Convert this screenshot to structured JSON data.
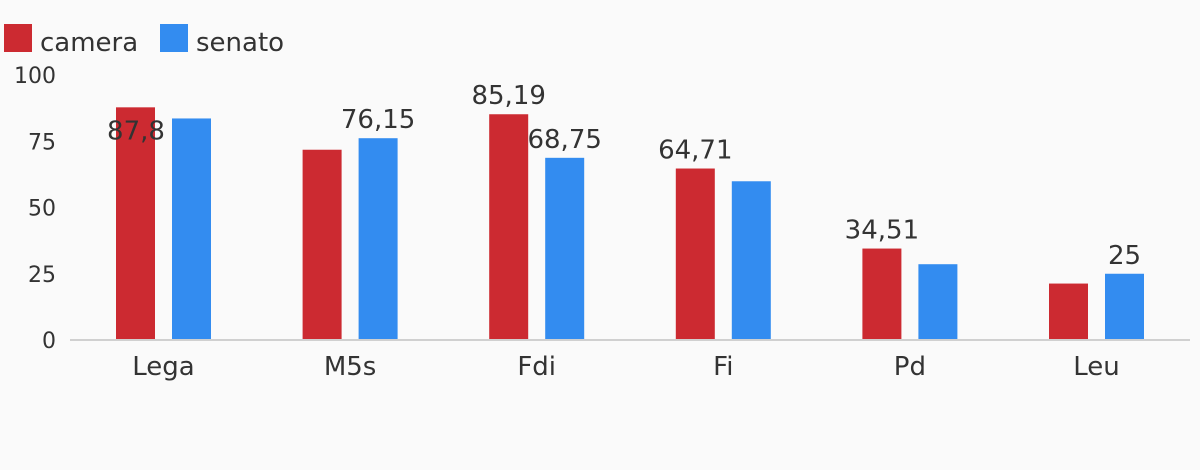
{
  "chart_data": {
    "type": "bar",
    "categories": [
      "Lega",
      "M5s",
      "Fdi",
      "Fi",
      "Pd",
      "Leu"
    ],
    "series": [
      {
        "name": "camera",
        "color": "#cc2a31",
        "values": [
          87.8,
          71.8,
          85.19,
          64.71,
          34.51,
          21.3
        ],
        "labels": [
          "87,8",
          "",
          "85,19",
          "64,71",
          "34,51",
          ""
        ]
      },
      {
        "name": "senato",
        "color": "#338cf0",
        "values": [
          83.6,
          76.15,
          68.75,
          59.9,
          28.6,
          25
        ],
        "labels": [
          "",
          "76,15",
          "68,75",
          "",
          "",
          "25"
        ]
      }
    ],
    "y_ticks": [
      "0",
      "25",
      "50",
      "75",
      "100"
    ],
    "ylim": [
      0,
      100
    ],
    "legend_position": "top-left",
    "grid": false
  }
}
